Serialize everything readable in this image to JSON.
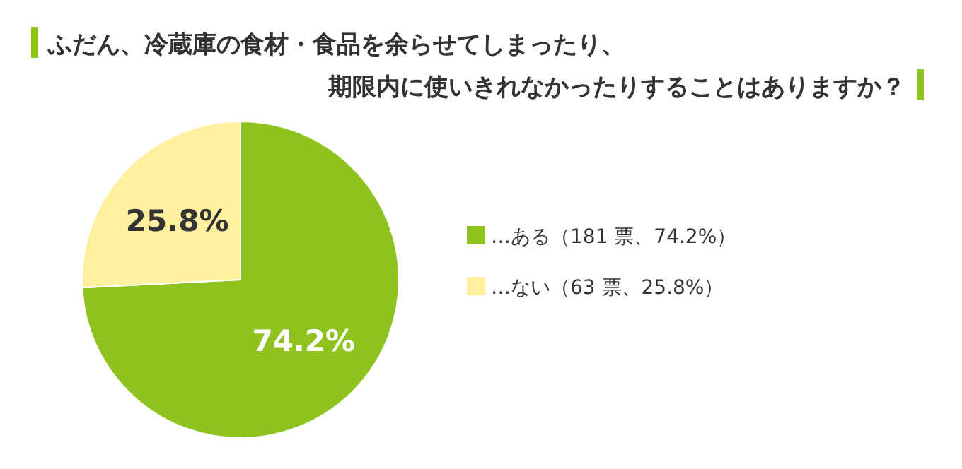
{
  "chart_data": {
    "type": "pie",
    "title": "ふだん、冷蔵庫の食材・食品を余らせてしまったり、",
    "subtitle": "期限内に使いきれなかったりすることはありますか？",
    "categories": [
      "…ある（181 票、74.2%）",
      "…ない（63 票、25.8%）"
    ],
    "values": [
      74.2,
      25.8
    ],
    "colors": [
      "#8dc21f",
      "#fff0a0"
    ],
    "value_labels": [
      "74.2%",
      "25.8%"
    ],
    "legend": "right"
  }
}
